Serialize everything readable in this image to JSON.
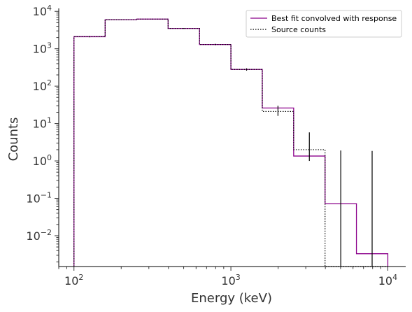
{
  "chart_data": {
    "type": "line",
    "subtype": "step-histogram",
    "title": "",
    "xlabel": "Energy (keV)",
    "ylabel": "Counts",
    "xscale": "log",
    "yscale": "log",
    "xlim": [
      80,
      13000
    ],
    "ylim": [
      0.0015,
      12000
    ],
    "grid": false,
    "legend_placement": "top-right",
    "bin_edges": [
      100,
      158,
      251,
      398,
      631,
      1000,
      1585,
      2512,
      3981,
      6310,
      10000
    ],
    "x_ticks": [
      {
        "base": "10",
        "exp": "2",
        "value": 100
      },
      {
        "base": "10",
        "exp": "3",
        "value": 1000
      },
      {
        "base": "10",
        "exp": "4",
        "value": 10000
      }
    ],
    "y_ticks": [
      {
        "base": "10",
        "exp": "−2",
        "value": 0.01
      },
      {
        "base": "10",
        "exp": "−1",
        "value": 0.1
      },
      {
        "base": "10",
        "exp": "0",
        "value": 1
      },
      {
        "base": "10",
        "exp": "1",
        "value": 10
      },
      {
        "base": "10",
        "exp": "2",
        "value": 100
      },
      {
        "base": "10",
        "exp": "3",
        "value": 1000
      },
      {
        "base": "10",
        "exp": "4",
        "value": 10000
      }
    ],
    "series": [
      {
        "name": "Best fit convolved with response",
        "color": "#8b008b",
        "style": "solid",
        "values": [
          2100,
          6000,
          6200,
          3500,
          1300,
          280,
          26,
          1.35,
          0.072,
          0.0033
        ]
      },
      {
        "name": "Source counts",
        "color": "#000000",
        "style": "dotted",
        "values": [
          2100,
          6000,
          6200,
          3500,
          1300,
          280,
          21,
          2.0,
          0.0,
          0.0
        ]
      }
    ],
    "error_bars": [
      {
        "x": 126,
        "y": 2100,
        "low": 2030,
        "high": 2170
      },
      {
        "x": 200,
        "y": 6000,
        "low": 5880,
        "high": 6120
      },
      {
        "x": 316,
        "y": 6200,
        "low": 6080,
        "high": 6320
      },
      {
        "x": 501,
        "y": 3500,
        "low": 3410,
        "high": 3590
      },
      {
        "x": 794,
        "y": 1300,
        "low": 1245,
        "high": 1355
      },
      {
        "x": 1259,
        "y": 280,
        "low": 260,
        "high": 300
      },
      {
        "x": 1995,
        "y": 21,
        "low": 16,
        "high": 30
      },
      {
        "x": 3162,
        "y": 2.0,
        "low": 1.0,
        "high": 5.8
      },
      {
        "x": 5012,
        "y": 0.0015,
        "low": 0.0015,
        "high": 1.9
      },
      {
        "x": 7943,
        "y": 0.0015,
        "low": 0.0015,
        "high": 1.85
      }
    ]
  }
}
